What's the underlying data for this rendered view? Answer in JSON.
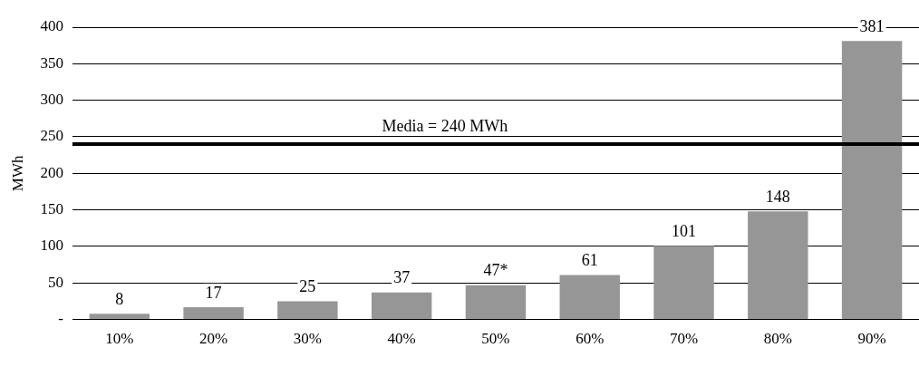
{
  "chart_data": {
    "type": "bar",
    "ylabel": "MWh",
    "categories": [
      "10%",
      "20%",
      "30%",
      "40%",
      "50%",
      "60%",
      "70%",
      "80%",
      "90%"
    ],
    "values": [
      8,
      17,
      25,
      37,
      47,
      61,
      101,
      148,
      381
    ],
    "value_labels": [
      "8",
      "17",
      "25",
      "37",
      "47*",
      "61",
      "101",
      "148",
      "381"
    ],
    "color": "#969696",
    "ylim": [
      0,
      400
    ],
    "yticks": [
      {
        "value": 0,
        "label": "-"
      },
      50,
      100,
      150,
      200,
      250,
      300,
      350,
      400
    ],
    "grid": "y",
    "legend": false,
    "ref_lines": [
      {
        "axis": "y",
        "value": 240,
        "label": "Media = 240 MWh",
        "color": "#000000"
      }
    ]
  }
}
